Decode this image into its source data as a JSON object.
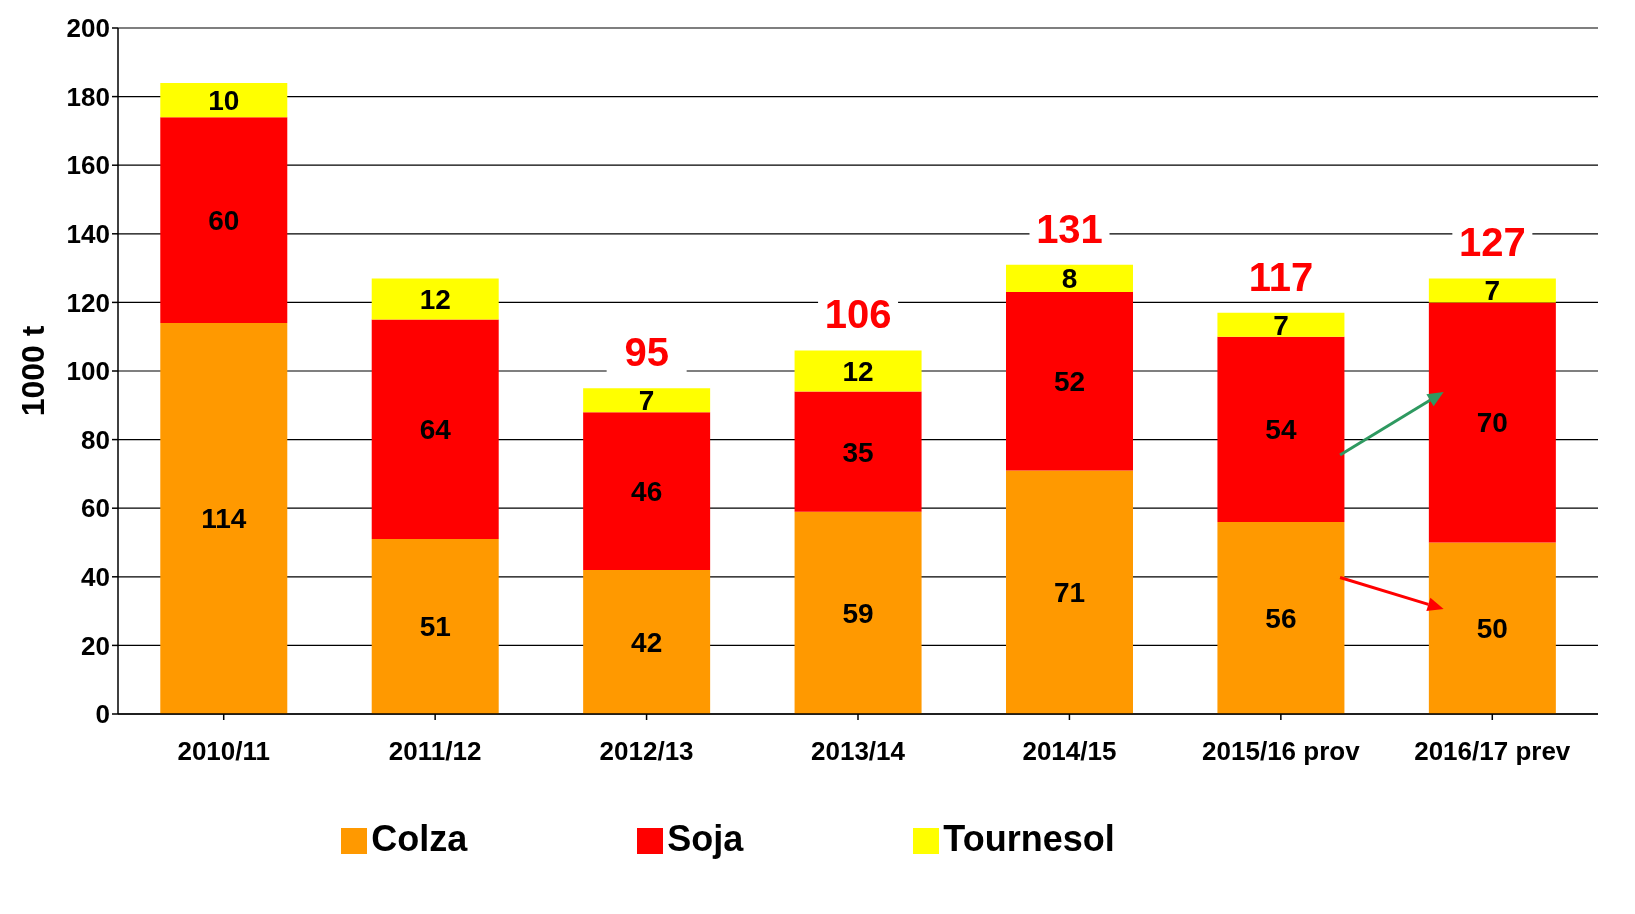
{
  "chart_data": {
    "type": "bar",
    "stacked": true,
    "ylabel": "1000 t",
    "categories": [
      "2010/11",
      "2011/12",
      "2012/13",
      "2013/14",
      "2014/15",
      "2015/16 prov",
      "2016/17 prev"
    ],
    "series": [
      {
        "name": "Colza",
        "color": "#ff9900",
        "values": [
          114,
          51,
          42,
          59,
          71,
          56,
          50
        ]
      },
      {
        "name": "Soja",
        "color": "#ff0000",
        "values": [
          60,
          64,
          46,
          35,
          52,
          54,
          70
        ]
      },
      {
        "name": "Tournesol",
        "color": "#ffff00",
        "values": [
          10,
          12,
          7,
          12,
          8,
          7,
          7
        ]
      }
    ],
    "totals": [
      null,
      null,
      "95",
      "106",
      "131",
      "117",
      "127"
    ],
    "data_labels": true,
    "ylim": [
      0,
      200
    ],
    "yticks": [
      0,
      20,
      40,
      60,
      80,
      100,
      120,
      140,
      160,
      180,
      200
    ],
    "grid": "y",
    "legend": "bottom"
  }
}
